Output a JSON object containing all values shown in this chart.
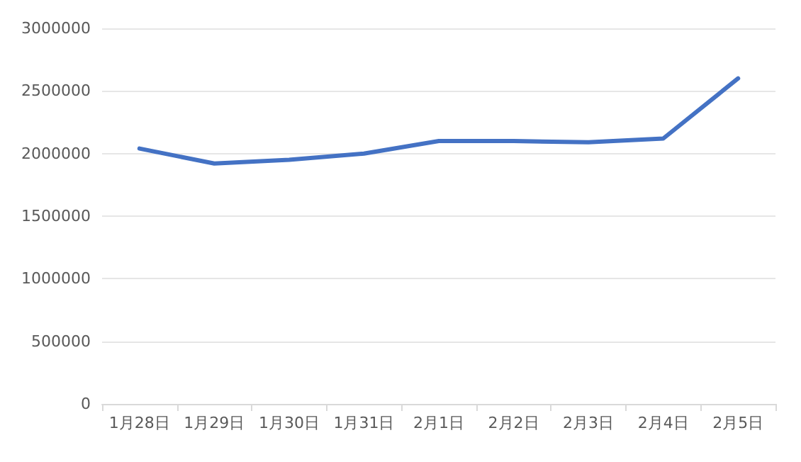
{
  "chart_data": {
    "type": "line",
    "categories": [
      "1月28日",
      "1月29日",
      "1月30日",
      "1月31日",
      "2月1日",
      "2月2日",
      "2月3日",
      "2月4日",
      "2月5日"
    ],
    "series": [
      {
        "color": "#4472c4",
        "values": [
          2040000,
          1920000,
          1950000,
          2000000,
          2100000,
          2100000,
          2090000,
          2120000,
          2600000
        ]
      }
    ],
    "ylim": [
      0,
      3000000
    ],
    "yticks": [
      0,
      500000,
      1000000,
      1500000,
      2000000,
      2500000,
      3000000
    ],
    "grid": "y",
    "marker": "none",
    "line_style": "solid"
  }
}
